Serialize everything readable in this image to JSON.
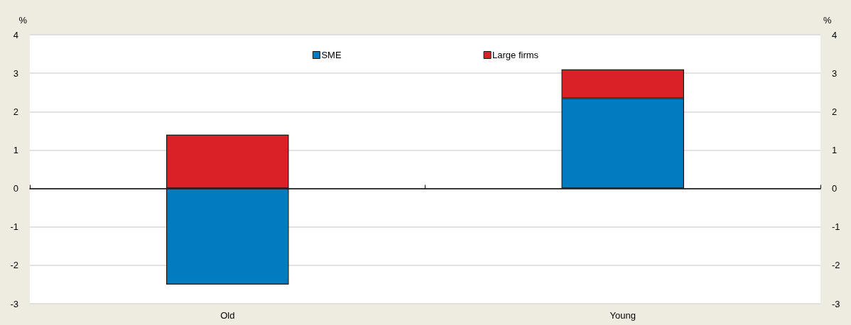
{
  "chart_data": {
    "type": "bar",
    "stacked": true,
    "categories": [
      "Old",
      "Young"
    ],
    "series": [
      {
        "name": "SME",
        "color": "#027bc1",
        "values": [
          -2.5,
          2.35
        ]
      },
      {
        "name": "Large firms",
        "color": "#da2128",
        "values": [
          1.4,
          0.75
        ]
      }
    ],
    "ylabel": "%",
    "y2label": "%",
    "ylim": [
      -3,
      4
    ],
    "yticks": [
      -3,
      -2,
      -1,
      0,
      1,
      2,
      3,
      4
    ],
    "y2lim": [
      -3,
      4
    ],
    "y2ticks": [
      -3,
      -2,
      -1,
      0,
      1,
      2,
      3,
      4
    ],
    "grid": "y",
    "legend": "top"
  }
}
